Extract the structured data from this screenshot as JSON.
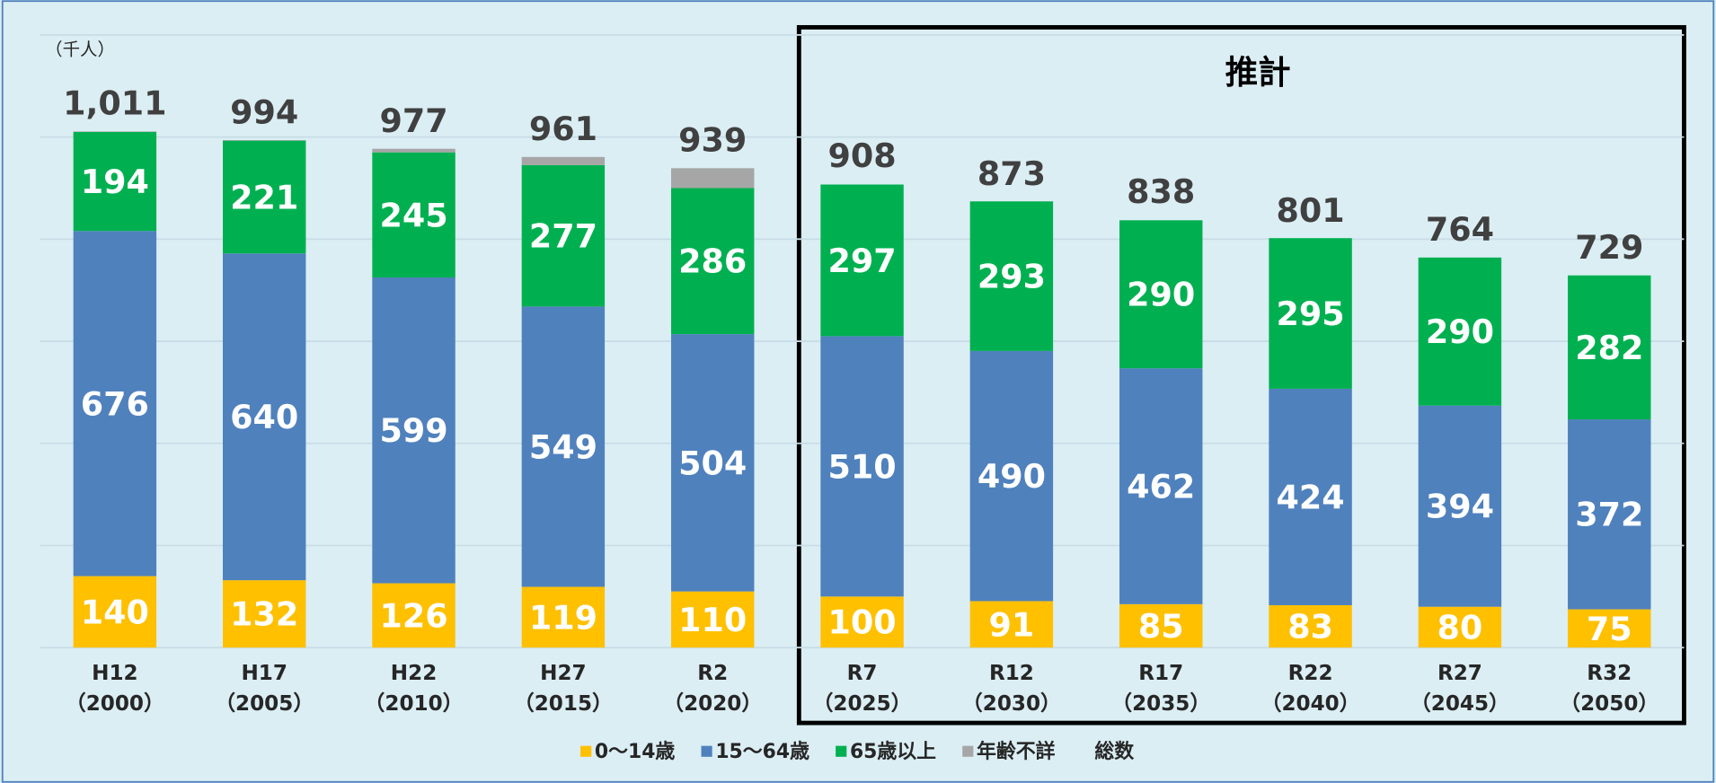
{
  "chart_data": {
    "type": "stacked-bar",
    "y_label": "（千人）",
    "annotation": "推計",
    "categories": [
      [
        "H12",
        "（2000）"
      ],
      [
        "H17",
        "（2005）"
      ],
      [
        "H22",
        "（2010）"
      ],
      [
        "H27",
        "（2015）"
      ],
      [
        "R2",
        "（2020）"
      ],
      [
        "R7",
        "（2025）"
      ],
      [
        "R12",
        "（2030）"
      ],
      [
        "R17",
        "（2035）"
      ],
      [
        "R22",
        "（2040）"
      ],
      [
        "R27",
        "（2045）"
      ],
      [
        "R32",
        "（2050）"
      ]
    ],
    "series": [
      {
        "name": "0～14歳",
        "color": "#ffc000",
        "values": [
          140,
          132,
          126,
          119,
          110,
          100,
          91,
          85,
          83,
          80,
          75
        ]
      },
      {
        "name": "15～64歳",
        "color": "#4f81bd",
        "values": [
          676,
          640,
          599,
          549,
          504,
          510,
          490,
          462,
          424,
          394,
          372
        ]
      },
      {
        "name": "65歳以上",
        "color": "#00b050",
        "values": [
          194,
          221,
          245,
          277,
          286,
          297,
          293,
          290,
          295,
          290,
          282
        ]
      },
      {
        "name": "年齢不詳",
        "color": "#a6a6a6",
        "values": [
          1,
          1,
          7,
          16,
          39,
          null,
          null,
          null,
          null,
          null,
          null
        ]
      }
    ],
    "totals": {
      "name": "総数",
      "values": [
        1011,
        994,
        977,
        961,
        939,
        908,
        873,
        838,
        801,
        764,
        729
      ],
      "value_labels": [
        "1,011",
        "994",
        "977",
        "961",
        "939",
        "908",
        "873",
        "838",
        "801",
        "764",
        "729"
      ]
    },
    "ylim": [
      0,
      1200
    ],
    "yticks": [
      0,
      200,
      400,
      600,
      800,
      1000,
      1200
    ],
    "grid": true
  }
}
